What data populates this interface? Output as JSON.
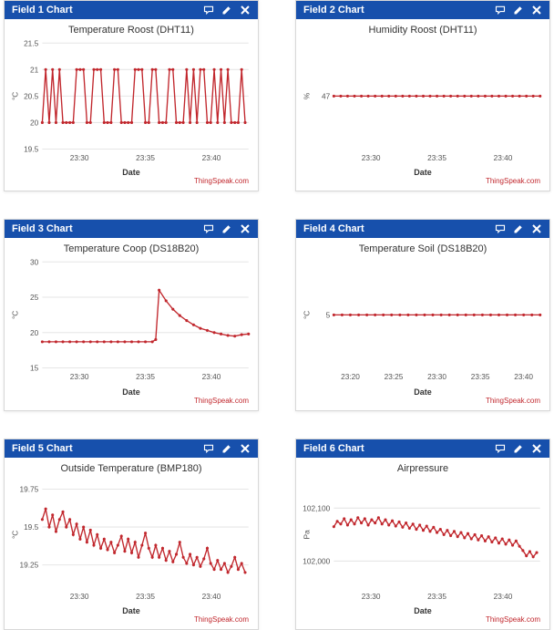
{
  "attribution": "ThingSpeak.com",
  "colors": {
    "header_bg": "#1750ac",
    "series": "#c1272d",
    "grid": "#e6e6e6",
    "text": "#555555",
    "axis": "#cccccc"
  },
  "x_axis_label": "Date",
  "panels": [
    {
      "header": "Field 1 Chart",
      "title": "Temperature Roost (DHT11)",
      "ylabel": "°C",
      "ylim": [
        19.5,
        21.5
      ],
      "yticks": [
        19.5,
        20,
        20.5,
        21,
        21.5
      ],
      "xticks": [
        "23:30",
        "23:35",
        "23:40"
      ],
      "xrange": [
        0,
        60
      ],
      "data": [
        [
          0,
          20
        ],
        [
          1,
          21
        ],
        [
          2,
          20
        ],
        [
          3,
          21
        ],
        [
          4,
          20
        ],
        [
          5,
          21
        ],
        [
          6,
          20
        ],
        [
          7,
          20
        ],
        [
          8,
          20
        ],
        [
          9,
          20
        ],
        [
          10,
          21
        ],
        [
          11,
          21
        ],
        [
          12,
          21
        ],
        [
          13,
          20
        ],
        [
          14,
          20
        ],
        [
          15,
          21
        ],
        [
          16,
          21
        ],
        [
          17,
          21
        ],
        [
          18,
          20
        ],
        [
          19,
          20
        ],
        [
          20,
          20
        ],
        [
          21,
          21
        ],
        [
          22,
          21
        ],
        [
          23,
          20
        ],
        [
          24,
          20
        ],
        [
          25,
          20
        ],
        [
          26,
          20
        ],
        [
          27,
          21
        ],
        [
          28,
          21
        ],
        [
          29,
          21
        ],
        [
          30,
          20
        ],
        [
          31,
          20
        ],
        [
          32,
          21
        ],
        [
          33,
          21
        ],
        [
          34,
          20
        ],
        [
          35,
          20
        ],
        [
          36,
          20
        ],
        [
          37,
          21
        ],
        [
          38,
          21
        ],
        [
          39,
          20
        ],
        [
          40,
          20
        ],
        [
          41,
          20
        ],
        [
          42,
          21
        ],
        [
          43,
          20
        ],
        [
          44,
          21
        ],
        [
          45,
          20
        ],
        [
          46,
          21
        ],
        [
          47,
          21
        ],
        [
          48,
          20
        ],
        [
          49,
          20
        ],
        [
          50,
          21
        ],
        [
          51,
          20
        ],
        [
          52,
          21
        ],
        [
          53,
          20
        ],
        [
          54,
          21
        ],
        [
          55,
          20
        ],
        [
          56,
          20
        ],
        [
          57,
          20
        ],
        [
          58,
          21
        ],
        [
          59,
          20
        ]
      ]
    },
    {
      "header": "Field 2 Chart",
      "title": "Humidity Roost (DHT11)",
      "ylabel": "%",
      "ylim": [
        46,
        48
      ],
      "yticks": [
        47
      ],
      "xticks": [
        "23:30",
        "23:35",
        "23:40"
      ],
      "xrange": [
        0,
        60
      ],
      "data": [
        [
          0,
          47
        ],
        [
          2,
          47
        ],
        [
          4,
          47
        ],
        [
          6,
          47
        ],
        [
          8,
          47
        ],
        [
          10,
          47
        ],
        [
          12,
          47
        ],
        [
          14,
          47
        ],
        [
          16,
          47
        ],
        [
          18,
          47
        ],
        [
          20,
          47
        ],
        [
          22,
          47
        ],
        [
          24,
          47
        ],
        [
          26,
          47
        ],
        [
          28,
          47
        ],
        [
          30,
          47
        ],
        [
          32,
          47
        ],
        [
          34,
          47
        ],
        [
          36,
          47
        ],
        [
          38,
          47
        ],
        [
          40,
          47
        ],
        [
          42,
          47
        ],
        [
          44,
          47
        ],
        [
          46,
          47
        ],
        [
          48,
          47
        ],
        [
          50,
          47
        ],
        [
          52,
          47
        ],
        [
          54,
          47
        ],
        [
          56,
          47
        ],
        [
          58,
          47
        ],
        [
          60,
          47
        ]
      ]
    },
    {
      "header": "Field 3 Chart",
      "title": "Temperature Coop (DS18B20)",
      "ylabel": "°C",
      "ylim": [
        15,
        30
      ],
      "yticks": [
        15,
        20,
        25,
        30
      ],
      "xticks": [
        "23:30",
        "23:35",
        "23:40"
      ],
      "xrange": [
        0,
        60
      ],
      "data": [
        [
          0,
          18.7
        ],
        [
          2,
          18.7
        ],
        [
          4,
          18.7
        ],
        [
          6,
          18.7
        ],
        [
          8,
          18.7
        ],
        [
          10,
          18.7
        ],
        [
          12,
          18.7
        ],
        [
          14,
          18.7
        ],
        [
          16,
          18.7
        ],
        [
          18,
          18.7
        ],
        [
          20,
          18.7
        ],
        [
          22,
          18.7
        ],
        [
          24,
          18.7
        ],
        [
          26,
          18.7
        ],
        [
          28,
          18.7
        ],
        [
          30,
          18.7
        ],
        [
          32,
          18.7
        ],
        [
          33,
          19
        ],
        [
          34,
          26
        ],
        [
          36,
          24.5
        ],
        [
          38,
          23.3
        ],
        [
          40,
          22.4
        ],
        [
          42,
          21.7
        ],
        [
          44,
          21.1
        ],
        [
          46,
          20.6
        ],
        [
          48,
          20.3
        ],
        [
          50,
          20.0
        ],
        [
          52,
          19.8
        ],
        [
          54,
          19.6
        ],
        [
          56,
          19.5
        ],
        [
          58,
          19.7
        ],
        [
          60,
          19.8
        ]
      ]
    },
    {
      "header": "Field 4 Chart",
      "title": "Temperature Soil (DS18B20)",
      "ylabel": "°C",
      "ylim": [
        4,
        6
      ],
      "yticks": [
        5
      ],
      "xticks": [
        "23:20",
        "23:25",
        "23:30",
        "23:35",
        "23:40"
      ],
      "xrange": [
        0,
        100
      ],
      "data": [
        [
          0,
          5
        ],
        [
          4,
          5
        ],
        [
          8,
          5
        ],
        [
          12,
          5
        ],
        [
          16,
          5
        ],
        [
          20,
          5
        ],
        [
          24,
          5
        ],
        [
          28,
          5
        ],
        [
          32,
          5
        ],
        [
          36,
          5
        ],
        [
          40,
          5
        ],
        [
          44,
          5
        ],
        [
          48,
          5
        ],
        [
          52,
          5
        ],
        [
          56,
          5
        ],
        [
          60,
          5
        ],
        [
          64,
          5
        ],
        [
          68,
          5
        ],
        [
          72,
          5
        ],
        [
          76,
          5
        ],
        [
          80,
          5
        ],
        [
          84,
          5
        ],
        [
          88,
          5
        ],
        [
          92,
          5
        ],
        [
          96,
          5
        ],
        [
          100,
          5
        ]
      ]
    },
    {
      "header": "Field 5 Chart",
      "title": "Outside Temperature (BMP180)",
      "ylabel": "°C",
      "ylim": [
        19.1,
        19.8
      ],
      "yticks": [
        19.25,
        19.5,
        19.75
      ],
      "xticks": [
        "23:30",
        "23:35",
        "23:40"
      ],
      "xrange": [
        0,
        60
      ],
      "data": [
        [
          0,
          19.55
        ],
        [
          1,
          19.62
        ],
        [
          2,
          19.5
        ],
        [
          3,
          19.58
        ],
        [
          4,
          19.47
        ],
        [
          5,
          19.55
        ],
        [
          6,
          19.6
        ],
        [
          7,
          19.5
        ],
        [
          8,
          19.55
        ],
        [
          9,
          19.45
        ],
        [
          10,
          19.52
        ],
        [
          11,
          19.42
        ],
        [
          12,
          19.5
        ],
        [
          13,
          19.4
        ],
        [
          14,
          19.48
        ],
        [
          15,
          19.38
        ],
        [
          16,
          19.45
        ],
        [
          17,
          19.36
        ],
        [
          18,
          19.42
        ],
        [
          19,
          19.35
        ],
        [
          20,
          19.4
        ],
        [
          21,
          19.33
        ],
        [
          22,
          19.38
        ],
        [
          23,
          19.44
        ],
        [
          24,
          19.34
        ],
        [
          25,
          19.42
        ],
        [
          26,
          19.33
        ],
        [
          27,
          19.4
        ],
        [
          28,
          19.3
        ],
        [
          29,
          19.38
        ],
        [
          30,
          19.46
        ],
        [
          31,
          19.36
        ],
        [
          32,
          19.3
        ],
        [
          33,
          19.38
        ],
        [
          34,
          19.3
        ],
        [
          35,
          19.36
        ],
        [
          36,
          19.28
        ],
        [
          37,
          19.34
        ],
        [
          38,
          19.27
        ],
        [
          39,
          19.32
        ],
        [
          40,
          19.4
        ],
        [
          41,
          19.3
        ],
        [
          42,
          19.26
        ],
        [
          43,
          19.32
        ],
        [
          44,
          19.25
        ],
        [
          45,
          19.3
        ],
        [
          46,
          19.24
        ],
        [
          47,
          19.29
        ],
        [
          48,
          19.36
        ],
        [
          49,
          19.26
        ],
        [
          50,
          19.22
        ],
        [
          51,
          19.28
        ],
        [
          52,
          19.22
        ],
        [
          53,
          19.26
        ],
        [
          54,
          19.2
        ],
        [
          55,
          19.24
        ],
        [
          56,
          19.3
        ],
        [
          57,
          19.22
        ],
        [
          58,
          19.26
        ],
        [
          59,
          19.2
        ]
      ]
    },
    {
      "header": "Field 6 Chart",
      "title": "Airpressure",
      "ylabel": "Pa",
      "ylim": [
        101950,
        102150
      ],
      "yticks": [
        102000,
        102100
      ],
      "xticks": [
        "23:30",
        "23:35",
        "23:40"
      ],
      "xrange": [
        0,
        60
      ],
      "data": [
        [
          0,
          102065
        ],
        [
          1,
          102075
        ],
        [
          2,
          102070
        ],
        [
          3,
          102080
        ],
        [
          4,
          102068
        ],
        [
          5,
          102078
        ],
        [
          6,
          102070
        ],
        [
          7,
          102082
        ],
        [
          8,
          102072
        ],
        [
          9,
          102080
        ],
        [
          10,
          102068
        ],
        [
          11,
          102078
        ],
        [
          12,
          102072
        ],
        [
          13,
          102082
        ],
        [
          14,
          102070
        ],
        [
          15,
          102078
        ],
        [
          16,
          102068
        ],
        [
          17,
          102076
        ],
        [
          18,
          102066
        ],
        [
          19,
          102074
        ],
        [
          20,
          102064
        ],
        [
          21,
          102072
        ],
        [
          22,
          102062
        ],
        [
          23,
          102070
        ],
        [
          24,
          102060
        ],
        [
          25,
          102068
        ],
        [
          26,
          102058
        ],
        [
          27,
          102066
        ],
        [
          28,
          102056
        ],
        [
          29,
          102064
        ],
        [
          30,
          102054
        ],
        [
          31,
          102060
        ],
        [
          32,
          102050
        ],
        [
          33,
          102058
        ],
        [
          34,
          102048
        ],
        [
          35,
          102056
        ],
        [
          36,
          102046
        ],
        [
          37,
          102054
        ],
        [
          38,
          102044
        ],
        [
          39,
          102052
        ],
        [
          40,
          102042
        ],
        [
          41,
          102050
        ],
        [
          42,
          102040
        ],
        [
          43,
          102048
        ],
        [
          44,
          102038
        ],
        [
          45,
          102046
        ],
        [
          46,
          102036
        ],
        [
          47,
          102044
        ],
        [
          48,
          102034
        ],
        [
          49,
          102042
        ],
        [
          50,
          102032
        ],
        [
          51,
          102040
        ],
        [
          52,
          102030
        ],
        [
          53,
          102038
        ],
        [
          54,
          102028
        ],
        [
          55,
          102020
        ],
        [
          56,
          102010
        ],
        [
          57,
          102018
        ],
        [
          58,
          102008
        ],
        [
          59,
          102016
        ]
      ]
    }
  ]
}
